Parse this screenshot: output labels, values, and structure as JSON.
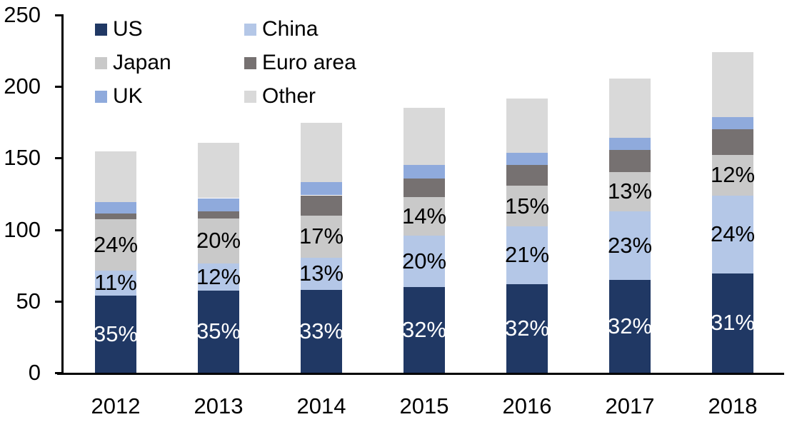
{
  "chart_data": {
    "type": "bar",
    "stacked": true,
    "title": "",
    "xlabel": "",
    "ylabel": "",
    "categories": [
      "2012",
      "2013",
      "2014",
      "2015",
      "2016",
      "2017",
      "2018"
    ],
    "series": [
      {
        "name": "US",
        "color": "#203864",
        "values": [
          54,
          57.5,
          58,
          60,
          62,
          65,
          69.5
        ],
        "labels": [
          "35%",
          "35%",
          "33%",
          "32%",
          "32%",
          "32%",
          "31%"
        ],
        "label_color": "#ffffff"
      },
      {
        "name": "China",
        "color": "#b4c7e7",
        "values": [
          17.5,
          19,
          22.5,
          36,
          40.5,
          48,
          54.5
        ],
        "labels": [
          "11%",
          "12%",
          "13%",
          "20%",
          "21%",
          "23%",
          "24%"
        ],
        "label_color": "#000000"
      },
      {
        "name": "Japan",
        "color": "#c9c9c9",
        "values": [
          36,
          31.5,
          29.5,
          27,
          28,
          27,
          28
        ],
        "labels": [
          "24%",
          "20%",
          "17%",
          "14%",
          "15%",
          "13%",
          "12%"
        ],
        "label_color": "#000000"
      },
      {
        "name": "Euro area",
        "color": "#767171",
        "values": [
          4,
          5,
          14,
          12.5,
          14.5,
          15.5,
          18
        ]
      },
      {
        "name": "UK",
        "color": "#8faadc",
        "values": [
          8,
          9,
          9,
          9.5,
          8.5,
          8.5,
          8.5
        ]
      },
      {
        "name": "Other",
        "color": "#d9d9d9",
        "values": [
          35,
          38.5,
          41.5,
          40,
          38,
          41.5,
          45.5
        ]
      }
    ],
    "stack_order_bottom_to_top": [
      "US",
      "China",
      "Japan",
      "Euro area",
      "UK",
      "Other"
    ],
    "y_axis": {
      "min": 0,
      "max": 250,
      "tick_step": 50,
      "tick_labels": [
        "0",
        "50",
        "100",
        "150",
        "200",
        "250"
      ]
    },
    "x_axis": {
      "tick_labels": [
        "2012",
        "2013",
        "2014",
        "2015",
        "2016",
        "2017",
        "2018"
      ]
    },
    "legend": {
      "position": "top-left",
      "columns": 2,
      "order": [
        "US",
        "China",
        "Japan",
        "Euro area",
        "UK",
        "Other"
      ]
    },
    "grid": "off",
    "axis_color": "#000000",
    "text_color": "#000000",
    "background_color": "#ffffff"
  }
}
